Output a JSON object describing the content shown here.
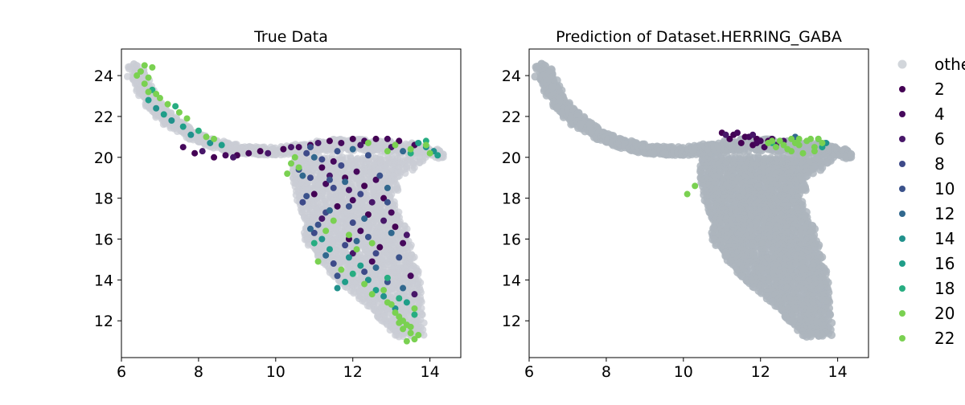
{
  "chart_data": [
    {
      "type": "scatter",
      "title": "True Data",
      "xlabel": "",
      "ylabel": "",
      "xlim": [
        6.0,
        14.8
      ],
      "ylim": [
        10.2,
        25.3
      ],
      "xticks": [
        6,
        8,
        10,
        12,
        14
      ],
      "yticks": [
        12,
        14,
        16,
        18,
        20,
        22,
        24
      ],
      "grid": false,
      "background_series": "other",
      "series": [
        {
          "name": "2",
          "color": "#440154",
          "points": [
            [
              7.9,
              20.2
            ],
            [
              8.4,
              20.0
            ],
            [
              9.0,
              20.1
            ],
            [
              9.6,
              20.3
            ],
            [
              10.2,
              20.4
            ],
            [
              10.9,
              20.6
            ],
            [
              11.4,
              20.8
            ],
            [
              12.0,
              20.9
            ],
            [
              12.6,
              20.9
            ],
            [
              13.2,
              20.8
            ],
            [
              11.2,
              19.5
            ],
            [
              11.8,
              19.0
            ],
            [
              12.3,
              18.6
            ],
            [
              11.0,
              18.2
            ],
            [
              12.8,
              18.0
            ],
            [
              11.6,
              17.6
            ],
            [
              12.4,
              17.2
            ],
            [
              13.1,
              16.6
            ],
            [
              11.9,
              16.0
            ],
            [
              12.7,
              15.6
            ]
          ]
        },
        {
          "name": "4",
          "color": "#46085c",
          "points": [
            [
              7.6,
              20.5
            ],
            [
              8.7,
              20.1
            ],
            [
              9.3,
              20.2
            ],
            [
              10.6,
              20.5
            ],
            [
              11.7,
              20.7
            ],
            [
              12.3,
              20.8
            ],
            [
              12.9,
              20.9
            ],
            [
              13.6,
              20.6
            ],
            [
              11.5,
              19.8
            ],
            [
              12.1,
              19.3
            ],
            [
              12.6,
              18.9
            ],
            [
              11.3,
              18.7
            ],
            [
              12.0,
              17.9
            ],
            [
              13.0,
              17.3
            ],
            [
              12.2,
              16.4
            ],
            [
              13.3,
              15.8
            ],
            [
              12.5,
              14.9
            ],
            [
              13.5,
              14.2
            ]
          ]
        },
        {
          "name": "6",
          "color": "#481769",
          "points": [
            [
              8.1,
              20.3
            ],
            [
              8.9,
              20.0
            ],
            [
              9.8,
              20.2
            ],
            [
              10.4,
              20.5
            ],
            [
              11.1,
              20.7
            ],
            [
              12.2,
              20.6
            ],
            [
              13.0,
              20.5
            ],
            [
              11.4,
              19.1
            ],
            [
              11.9,
              18.4
            ],
            [
              12.5,
              17.8
            ],
            [
              11.2,
              17.0
            ],
            [
              12.8,
              16.9
            ],
            [
              13.4,
              16.2
            ],
            [
              12.0,
              15.3
            ],
            [
              13.6,
              13.3
            ]
          ]
        },
        {
          "name": "8",
          "color": "#3e4a89",
          "points": [
            [
              10.8,
              20.2
            ],
            [
              11.2,
              19.9
            ],
            [
              11.7,
              19.6
            ],
            [
              10.9,
              19.0
            ],
            [
              11.5,
              18.5
            ],
            [
              12.2,
              18.2
            ],
            [
              10.7,
              17.8
            ],
            [
              11.3,
              17.3
            ],
            [
              12.0,
              16.8
            ],
            [
              11.0,
              16.3
            ],
            [
              11.8,
              15.7
            ],
            [
              12.6,
              15.3
            ],
            [
              11.5,
              14.8
            ],
            [
              12.3,
              14.4
            ]
          ]
        },
        {
          "name": "10",
          "color": "#3b528b",
          "points": [
            [
              10.9,
              20.5
            ],
            [
              11.6,
              20.3
            ],
            [
              12.4,
              20.1
            ],
            [
              10.6,
              19.4
            ],
            [
              11.4,
              18.9
            ],
            [
              12.7,
              19.1
            ],
            [
              10.8,
              18.1
            ],
            [
              11.9,
              17.6
            ],
            [
              12.9,
              17.8
            ],
            [
              11.1,
              16.7
            ],
            [
              12.4,
              16.1
            ],
            [
              13.2,
              15.1
            ],
            [
              11.6,
              14.2
            ],
            [
              12.9,
              13.9
            ]
          ]
        },
        {
          "name": "12",
          "color": "#31688e",
          "points": [
            [
              11.0,
              20.0
            ],
            [
              12.0,
              20.4
            ],
            [
              13.3,
              20.3
            ],
            [
              10.7,
              19.1
            ],
            [
              11.8,
              18.8
            ],
            [
              12.9,
              18.5
            ],
            [
              11.4,
              17.4
            ],
            [
              12.3,
              17.0
            ],
            [
              10.9,
              16.5
            ],
            [
              12.1,
              15.9
            ],
            [
              13.0,
              16.3
            ],
            [
              11.3,
              15.2
            ],
            [
              12.6,
              14.6
            ],
            [
              13.3,
              13.6
            ]
          ]
        },
        {
          "name": "14",
          "color": "#21918c",
          "points": [
            [
              6.9,
              22.4
            ],
            [
              7.3,
              21.8
            ],
            [
              7.8,
              21.1
            ],
            [
              8.3,
              20.7
            ],
            [
              13.9,
              20.5
            ],
            [
              14.1,
              20.3
            ],
            [
              11.2,
              16.0
            ],
            [
              11.9,
              15.1
            ],
            [
              12.4,
              14.0
            ],
            [
              11.6,
              13.6
            ],
            [
              12.8,
              13.2
            ],
            [
              13.1,
              12.6
            ]
          ]
        },
        {
          "name": "16",
          "color": "#1f9e89",
          "points": [
            [
              6.7,
              22.8
            ],
            [
              7.1,
              22.1
            ],
            [
              7.6,
              21.5
            ],
            [
              8.6,
              20.6
            ],
            [
              13.7,
              20.7
            ],
            [
              14.2,
              20.1
            ],
            [
              11.4,
              15.5
            ],
            [
              12.2,
              14.7
            ],
            [
              11.8,
              13.9
            ],
            [
              12.6,
              13.5
            ],
            [
              13.4,
              12.9
            ]
          ]
        },
        {
          "name": "18",
          "color": "#27ad81",
          "points": [
            [
              6.8,
              23.3
            ],
            [
              7.4,
              22.5
            ],
            [
              8.0,
              21.3
            ],
            [
              13.5,
              20.2
            ],
            [
              13.9,
              20.8
            ],
            [
              11.0,
              15.8
            ],
            [
              12.0,
              14.3
            ],
            [
              12.9,
              14.1
            ],
            [
              13.2,
              13.1
            ],
            [
              13.6,
              12.3
            ]
          ]
        },
        {
          "name": "20",
          "color": "#7ad151",
          "points": [
            [
              6.5,
              24.2
            ],
            [
              6.6,
              23.6
            ],
            [
              6.7,
              23.9
            ],
            [
              6.8,
              24.4
            ],
            [
              6.9,
              23.1
            ],
            [
              7.2,
              22.6
            ],
            [
              7.7,
              21.9
            ],
            [
              8.2,
              21.0
            ],
            [
              10.5,
              20.0
            ],
            [
              10.6,
              19.5
            ],
            [
              13.1,
              20.6
            ],
            [
              13.5,
              20.4
            ],
            [
              13.9,
              20.6
            ],
            [
              11.3,
              16.4
            ],
            [
              11.9,
              16.2
            ],
            [
              12.5,
              15.8
            ],
            [
              11.1,
              14.9
            ],
            [
              12.3,
              13.8
            ],
            [
              12.8,
              13.5
            ],
            [
              13.0,
              12.8
            ],
            [
              13.2,
              12.2
            ],
            [
              13.4,
              11.8
            ],
            [
              13.5,
              11.4
            ],
            [
              13.6,
              11.1
            ],
            [
              13.3,
              11.6
            ],
            [
              13.1,
              12.4
            ]
          ]
        },
        {
          "name": "22",
          "color": "#7ad151",
          "points": [
            [
              6.4,
              24.0
            ],
            [
              6.6,
              24.5
            ],
            [
              6.7,
              23.2
            ],
            [
              7.0,
              22.9
            ],
            [
              7.5,
              22.2
            ],
            [
              8.4,
              20.9
            ],
            [
              10.4,
              19.7
            ],
            [
              10.3,
              19.2
            ],
            [
              12.4,
              20.7
            ],
            [
              12.9,
              20.3
            ],
            [
              14.0,
              20.2
            ],
            [
              11.5,
              16.9
            ],
            [
              12.1,
              15.5
            ],
            [
              11.7,
              14.5
            ],
            [
              12.5,
              13.3
            ],
            [
              12.9,
              12.9
            ],
            [
              13.3,
              12.0
            ],
            [
              13.5,
              11.7
            ],
            [
              13.7,
              11.3
            ],
            [
              13.4,
              11.0
            ],
            [
              13.2,
              11.9
            ],
            [
              13.6,
              12.6
            ]
          ]
        }
      ]
    },
    {
      "type": "scatter",
      "title": "Prediction of Dataset.HERRING_GABA",
      "xlabel": "",
      "ylabel": "",
      "xlim": [
        6.0,
        14.8
      ],
      "ylim": [
        10.2,
        25.3
      ],
      "xticks": [
        6,
        8,
        10,
        12,
        14
      ],
      "yticks": [
        12,
        14,
        16,
        18,
        20,
        22,
        24
      ],
      "grid": false,
      "legend_placement": "outside-right",
      "background_series": "other",
      "series": [
        {
          "name": "other",
          "color": "#adb5bd",
          "points": []
        },
        {
          "name": "2",
          "color": "#440154",
          "points": [
            [
              11.0,
              21.2
            ],
            [
              11.3,
              21.1
            ],
            [
              11.6,
              21.0
            ],
            [
              11.9,
              20.9
            ],
            [
              12.2,
              20.8
            ],
            [
              11.2,
              20.9
            ],
            [
              11.5,
              20.7
            ],
            [
              11.8,
              20.6
            ]
          ]
        },
        {
          "name": "4",
          "color": "#46085c",
          "points": [
            [
              11.4,
              21.2
            ],
            [
              11.7,
              21.0
            ],
            [
              12.0,
              20.8
            ],
            [
              12.3,
              20.9
            ],
            [
              11.9,
              20.7
            ],
            [
              12.1,
              20.5
            ]
          ]
        },
        {
          "name": "6",
          "color": "#481769",
          "points": [
            [
              11.1,
              21.1
            ],
            [
              11.8,
              21.1
            ],
            [
              12.4,
              20.6
            ],
            [
              12.6,
              20.8
            ]
          ]
        },
        {
          "name": "8",
          "color": "#3e4a89",
          "points": []
        },
        {
          "name": "10",
          "color": "#3b528b",
          "points": []
        },
        {
          "name": "12",
          "color": "#31688e",
          "points": [
            [
              12.9,
              21.0
            ]
          ]
        },
        {
          "name": "14",
          "color": "#21918c",
          "points": [
            [
              13.5,
              20.9
            ],
            [
              13.7,
              20.7
            ]
          ]
        },
        {
          "name": "16",
          "color": "#1f9e89",
          "points": [
            [
              13.6,
              20.5
            ]
          ]
        },
        {
          "name": "18",
          "color": "#27ad81",
          "points": [
            [
              12.3,
              20.7
            ]
          ]
        },
        {
          "name": "20",
          "color": "#7ad151",
          "points": [
            [
              12.2,
              20.7
            ],
            [
              12.5,
              20.8
            ],
            [
              12.8,
              20.9
            ],
            [
              13.0,
              20.6
            ],
            [
              13.2,
              20.8
            ],
            [
              13.4,
              20.5
            ],
            [
              12.7,
              20.4
            ],
            [
              13.1,
              20.2
            ],
            [
              10.1,
              18.2
            ],
            [
              10.3,
              18.6
            ],
            [
              13.5,
              20.9
            ],
            [
              12.4,
              20.5
            ]
          ]
        },
        {
          "name": "22",
          "color": "#7ad151",
          "points": [
            [
              12.3,
              20.8
            ],
            [
              12.6,
              20.6
            ],
            [
              12.9,
              20.7
            ],
            [
              13.3,
              20.9
            ],
            [
              13.6,
              20.7
            ],
            [
              12.8,
              20.3
            ],
            [
              13.0,
              20.9
            ],
            [
              13.4,
              20.3
            ]
          ]
        }
      ]
    }
  ]
}
